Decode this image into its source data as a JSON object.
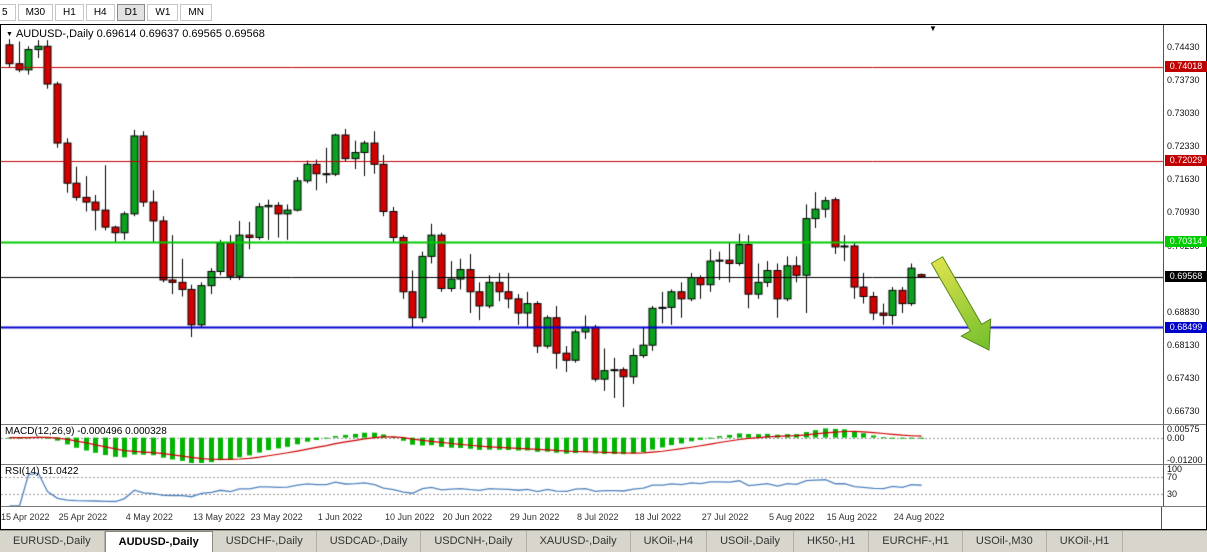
{
  "toolbar": {
    "timeframes": [
      {
        "label": "5",
        "active": false
      },
      {
        "label": "M30",
        "active": false
      },
      {
        "label": "H1",
        "active": false
      },
      {
        "label": "H4",
        "active": false
      },
      {
        "label": "D1",
        "active": true
      },
      {
        "label": "W1",
        "active": false
      },
      {
        "label": "MN",
        "active": false
      }
    ]
  },
  "chart": {
    "title_symbol": "AUDUSD-,Daily",
    "title_ohlc": "0.69614 0.69637 0.69565 0.69568",
    "macd_label": "MACD(12,26,9) -0.000496 0.000328",
    "rsi_label": "RSI(14) 51.0422"
  },
  "chart_data": {
    "type": "candlestick",
    "title": "AUDUSD-,Daily",
    "ylim": [
      0.6645,
      0.749
    ],
    "colors": {
      "up": "#0aa21e",
      "down": "#d40000",
      "wick": "#000000",
      "macd_hist": "#00b400",
      "macd_signal": "#cc0000",
      "rsi_line": "#4f81bd",
      "bid_line": "#000000"
    },
    "candles": [
      [
        0.7448,
        0.746,
        0.74,
        0.7408
      ],
      [
        0.7408,
        0.7455,
        0.739,
        0.7395
      ],
      [
        0.7395,
        0.7445,
        0.7385,
        0.7438
      ],
      [
        0.7438,
        0.7458,
        0.742,
        0.7445
      ],
      [
        0.7445,
        0.7458,
        0.7355,
        0.7365
      ],
      [
        0.7365,
        0.737,
        0.723,
        0.724
      ],
      [
        0.724,
        0.725,
        0.7135,
        0.7155
      ],
      [
        0.7155,
        0.719,
        0.7118,
        0.7125
      ],
      [
        0.7125,
        0.717,
        0.7095,
        0.7115
      ],
      [
        0.7115,
        0.713,
        0.7055,
        0.7098
      ],
      [
        0.7098,
        0.7193,
        0.7055,
        0.7062
      ],
      [
        0.7062,
        0.7065,
        0.7029,
        0.705
      ],
      [
        0.705,
        0.7095,
        0.7035,
        0.709
      ],
      [
        0.709,
        0.7268,
        0.7085,
        0.7255
      ],
      [
        0.7255,
        0.7265,
        0.7105,
        0.7115
      ],
      [
        0.7115,
        0.714,
        0.703,
        0.7075
      ],
      [
        0.7075,
        0.7085,
        0.6945,
        0.695
      ],
      [
        0.695,
        0.7045,
        0.692,
        0.6945
      ],
      [
        0.6945,
        0.6995,
        0.6915,
        0.693
      ],
      [
        0.693,
        0.694,
        0.6829,
        0.6855
      ],
      [
        0.6855,
        0.6945,
        0.685,
        0.6938
      ],
      [
        0.6938,
        0.6975,
        0.692,
        0.6968
      ],
      [
        0.6968,
        0.7035,
        0.696,
        0.7028
      ],
      [
        0.7028,
        0.7045,
        0.695,
        0.6958
      ],
      [
        0.6958,
        0.7075,
        0.695,
        0.7045
      ],
      [
        0.7045,
        0.7073,
        0.7015,
        0.704
      ],
      [
        0.704,
        0.7113,
        0.7035,
        0.7105
      ],
      [
        0.7105,
        0.712,
        0.7035,
        0.7108
      ],
      [
        0.7108,
        0.7115,
        0.704,
        0.709
      ],
      [
        0.709,
        0.711,
        0.7035,
        0.7098
      ],
      [
        0.7098,
        0.7168,
        0.7095,
        0.716
      ],
      [
        0.716,
        0.7203,
        0.7155,
        0.7195
      ],
      [
        0.7195,
        0.7205,
        0.714,
        0.7175
      ],
      [
        0.7175,
        0.723,
        0.7155,
        0.7174
      ],
      [
        0.7174,
        0.726,
        0.717,
        0.7257
      ],
      [
        0.7257,
        0.727,
        0.72,
        0.7207
      ],
      [
        0.7207,
        0.7245,
        0.7185,
        0.722
      ],
      [
        0.722,
        0.7245,
        0.717,
        0.724
      ],
      [
        0.724,
        0.7265,
        0.7175,
        0.7195
      ],
      [
        0.7195,
        0.7215,
        0.7085,
        0.7095
      ],
      [
        0.7095,
        0.7105,
        0.703,
        0.704
      ],
      [
        0.704,
        0.7045,
        0.691,
        0.6925
      ],
      [
        0.6925,
        0.697,
        0.685,
        0.687
      ],
      [
        0.687,
        0.701,
        0.686,
        0.7
      ],
      [
        0.7,
        0.7069,
        0.6985,
        0.7045
      ],
      [
        0.7045,
        0.705,
        0.6925,
        0.6932
      ],
      [
        0.6932,
        0.699,
        0.6925,
        0.6952
      ],
      [
        0.6952,
        0.6995,
        0.693,
        0.6972
      ],
      [
        0.6972,
        0.7005,
        0.688,
        0.6925
      ],
      [
        0.6925,
        0.6945,
        0.6865,
        0.6895
      ],
      [
        0.6895,
        0.696,
        0.689,
        0.6945
      ],
      [
        0.6945,
        0.6965,
        0.6905,
        0.6925
      ],
      [
        0.6925,
        0.6965,
        0.689,
        0.691
      ],
      [
        0.691,
        0.692,
        0.6855,
        0.688
      ],
      [
        0.688,
        0.6925,
        0.685,
        0.69
      ],
      [
        0.69,
        0.6905,
        0.6795,
        0.681
      ],
      [
        0.681,
        0.6875,
        0.6805,
        0.687
      ],
      [
        0.687,
        0.6895,
        0.6762,
        0.6795
      ],
      [
        0.6795,
        0.681,
        0.6755,
        0.678
      ],
      [
        0.678,
        0.6845,
        0.6775,
        0.684
      ],
      [
        0.684,
        0.6875,
        0.6825,
        0.685
      ],
      [
        0.685,
        0.6855,
        0.6735,
        0.674
      ],
      [
        0.674,
        0.6805,
        0.6715,
        0.6758
      ],
      [
        0.6758,
        0.6785,
        0.67,
        0.676
      ],
      [
        0.676,
        0.6765,
        0.6681,
        0.6745
      ],
      [
        0.6745,
        0.6805,
        0.673,
        0.679
      ],
      [
        0.679,
        0.685,
        0.6785,
        0.6812
      ],
      [
        0.6812,
        0.6895,
        0.68,
        0.689
      ],
      [
        0.689,
        0.6925,
        0.6858,
        0.6892
      ],
      [
        0.6892,
        0.693,
        0.6855,
        0.6925
      ],
      [
        0.6925,
        0.6945,
        0.687,
        0.691
      ],
      [
        0.691,
        0.6965,
        0.6905,
        0.6955
      ],
      [
        0.6955,
        0.696,
        0.691,
        0.694
      ],
      [
        0.694,
        0.7015,
        0.6925,
        0.699
      ],
      [
        0.699,
        0.701,
        0.695,
        0.6992
      ],
      [
        0.6992,
        0.703,
        0.6945,
        0.6985
      ],
      [
        0.6985,
        0.7048,
        0.698,
        0.7025
      ],
      [
        0.7025,
        0.7045,
        0.689,
        0.692
      ],
      [
        0.692,
        0.6985,
        0.691,
        0.6945
      ],
      [
        0.6945,
        0.699,
        0.6935,
        0.697
      ],
      [
        0.697,
        0.6985,
        0.687,
        0.691
      ],
      [
        0.691,
        0.7,
        0.6905,
        0.698
      ],
      [
        0.698,
        0.7,
        0.6945,
        0.696
      ],
      [
        0.696,
        0.711,
        0.688,
        0.708
      ],
      [
        0.708,
        0.7136,
        0.706,
        0.71
      ],
      [
        0.71,
        0.7126,
        0.7082,
        0.7118
      ],
      [
        0.712,
        0.7125,
        0.7005,
        0.702
      ],
      [
        0.702,
        0.7045,
        0.699,
        0.7022
      ],
      [
        0.7022,
        0.7028,
        0.691,
        0.6935
      ],
      [
        0.6935,
        0.6965,
        0.69,
        0.6915
      ],
      [
        0.6915,
        0.6925,
        0.6865,
        0.688
      ],
      [
        0.688,
        0.69,
        0.6855,
        0.6875
      ],
      [
        0.6875,
        0.6935,
        0.6855,
        0.6928
      ],
      [
        0.6928,
        0.6935,
        0.688,
        0.69
      ],
      [
        0.69,
        0.6985,
        0.6895,
        0.6975
      ],
      [
        0.69614,
        0.69637,
        0.69565,
        0.69568
      ]
    ],
    "hlines": [
      {
        "price": 0.74018,
        "label": "0.74018",
        "color": "#c00000",
        "width": 1
      },
      {
        "price": 0.72029,
        "label": "0.72029",
        "color": "#c00000",
        "width": 1
      },
      {
        "price": 0.70314,
        "label": "0.70314",
        "color": "#00cc00",
        "width": 2
      },
      {
        "price": 0.68499,
        "label": "0.68499",
        "color": "#0000cc",
        "width": 2
      }
    ],
    "current_price": {
      "value": 0.69568,
      "label": "0.69568",
      "color": "#000000"
    },
    "price_grid_labels": [
      "0.74430",
      "0.73730",
      "0.73030",
      "0.72330",
      "0.71630",
      "0.70930",
      "0.70230",
      "0.69530",
      "0.68830",
      "0.68130",
      "0.67430",
      "0.66730"
    ],
    "x_axis_labels": [
      {
        "text": "15 Apr 2022",
        "index": 0
      },
      {
        "text": "25 Apr 2022",
        "index": 6
      },
      {
        "text": "4 May 2022",
        "index": 13
      },
      {
        "text": "13 May 2022",
        "index": 20
      },
      {
        "text": "23 May 2022",
        "index": 26
      },
      {
        "text": "1 Jun 2022",
        "index": 33
      },
      {
        "text": "10 Jun 2022",
        "index": 40
      },
      {
        "text": "20 Jun 2022",
        "index": 46
      },
      {
        "text": "29 Jun 2022",
        "index": 53
      },
      {
        "text": "8 Jul 2022",
        "index": 60
      },
      {
        "text": "18 Jul 2022",
        "index": 66
      },
      {
        "text": "27 Jul 2022",
        "index": 73
      },
      {
        "text": "5 Aug 2022",
        "index": 80
      },
      {
        "text": "15 Aug 2022",
        "index": 86
      },
      {
        "text": "24 Aug 2022",
        "index": 93
      }
    ],
    "macd": {
      "params": [
        12,
        26,
        9
      ],
      "current_values": [
        -0.000496,
        0.000328
      ],
      "ylim": [
        -0.012,
        0.00575
      ],
      "axis_labels": [
        {
          "text": "0.00575",
          "value": 0.00575
        },
        {
          "text": "0.00",
          "value": 0
        },
        {
          "text": "-0.01200",
          "value": -0.012
        }
      ]
    },
    "rsi": {
      "period": 14,
      "current_value": 51.0422,
      "levels": [
        30,
        70
      ],
      "ylim": [
        0,
        100
      ],
      "axis_labels": [
        {
          "text": "100",
          "value": 100
        },
        {
          "text": "70",
          "value": 70
        },
        {
          "text": "30",
          "value": 30
        }
      ]
    },
    "layout": {
      "x0": 8,
      "step": 9.6,
      "body_width": 7
    },
    "arrow": {
      "color_top": "#dde24d",
      "color_bottom": "#72bf2c",
      "stroke": "#568a1d"
    }
  },
  "tabs": {
    "items": [
      {
        "label": "EURUSD-,Daily",
        "active": false
      },
      {
        "label": "AUDUSD-,Daily",
        "active": true
      },
      {
        "label": "USDCHF-,Daily",
        "active": false
      },
      {
        "label": "USDCAD-,Daily",
        "active": false
      },
      {
        "label": "USDCNH-,Daily",
        "active": false
      },
      {
        "label": "XAUUSD-,Daily",
        "active": false
      },
      {
        "label": "UKOil-,H4",
        "active": false
      },
      {
        "label": "USOil-,Daily",
        "active": false
      },
      {
        "label": "HK50-,H1",
        "active": false
      },
      {
        "label": "EURCHF-,H1",
        "active": false
      },
      {
        "label": "USOil-,M30",
        "active": false
      },
      {
        "label": "UKOil-,H1",
        "active": false
      }
    ]
  }
}
